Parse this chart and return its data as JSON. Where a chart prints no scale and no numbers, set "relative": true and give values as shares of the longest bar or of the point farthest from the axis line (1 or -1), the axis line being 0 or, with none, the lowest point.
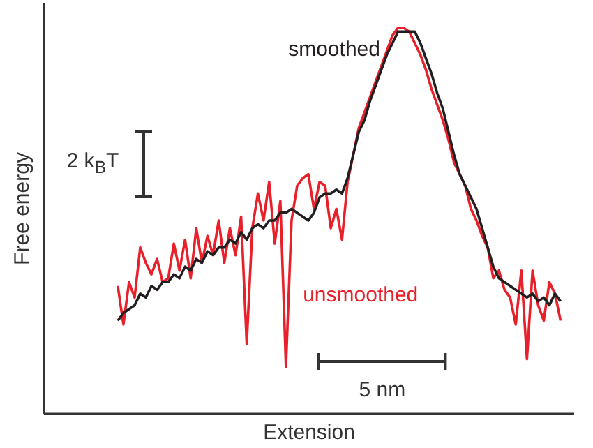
{
  "chart_data": {
    "type": "line",
    "relative": true,
    "xlabel": "Extension",
    "ylabel": "Free energy",
    "categories": [
      null,
      null,
      null,
      null,
      null,
      null,
      null,
      null,
      null,
      null,
      null,
      null,
      null,
      null,
      null,
      null,
      null,
      null,
      null,
      null,
      null,
      null,
      null,
      null,
      null,
      null,
      null,
      null,
      null,
      null,
      null,
      null,
      null,
      null,
      null,
      null,
      null,
      null,
      null,
      null,
      null,
      null,
      null,
      null,
      null,
      null,
      null,
      null,
      null,
      null,
      null,
      null,
      null,
      null,
      null,
      null,
      null,
      null,
      null,
      null,
      null,
      null,
      null,
      null,
      null,
      null,
      null,
      null,
      null,
      null,
      null,
      null,
      null,
      null,
      null,
      null,
      null,
      null,
      null,
      null
    ],
    "series": [
      {
        "name": "unsmoothed",
        "color": "#e8202a",
        "values": [
          0.33,
          0.23,
          0.34,
          0.3,
          0.43,
          0.39,
          0.36,
          0.4,
          0.34,
          0.35,
          0.44,
          0.37,
          0.45,
          0.35,
          0.48,
          0.39,
          0.46,
          0.41,
          0.5,
          0.39,
          0.48,
          0.41,
          0.51,
          0.18,
          0.48,
          0.57,
          0.5,
          0.6,
          0.44,
          0.55,
          0.12,
          0.5,
          0.59,
          0.61,
          0.62,
          0.53,
          0.6,
          0.59,
          0.48,
          0.53,
          0.45,
          0.6,
          0.67,
          0.74,
          0.78,
          0.82,
          0.86,
          0.9,
          0.94,
          0.98,
          1,
          1,
          0.99,
          0.96,
          0.93,
          0.89,
          0.84,
          0.8,
          0.76,
          0.71,
          0.65,
          0.62,
          0.59,
          0.53,
          0.5,
          0.46,
          0.43,
          0.35,
          0.37,
          0.32,
          0.3,
          0.23,
          0.37,
          0.14,
          0.37,
          0.28,
          0.24,
          0.34,
          0.31,
          0.24
        ]
      },
      {
        "name": "smoothed",
        "color": "#231f20",
        "values": [
          0.24,
          0.26,
          0.27,
          0.28,
          0.31,
          0.3,
          0.33,
          0.32,
          0.34,
          0.34,
          0.36,
          0.35,
          0.38,
          0.37,
          0.4,
          0.39,
          0.42,
          0.41,
          0.43,
          0.43,
          0.45,
          0.44,
          0.47,
          0.45,
          0.48,
          0.49,
          0.48,
          0.5,
          0.5,
          0.52,
          0.52,
          0.53,
          0.52,
          0.51,
          0.5,
          0.52,
          0.56,
          0.57,
          0.57,
          0.58,
          0.57,
          0.61,
          0.67,
          0.73,
          0.76,
          0.81,
          0.85,
          0.89,
          0.93,
          0.96,
          0.99,
          0.99,
          0.99,
          0.99,
          0.96,
          0.92,
          0.88,
          0.83,
          0.79,
          0.73,
          0.67,
          0.62,
          0.59,
          0.56,
          0.53,
          0.48,
          0.43,
          0.38,
          0.35,
          0.34,
          0.33,
          0.32,
          0.31,
          0.3,
          0.31,
          0.29,
          0.3,
          0.28,
          0.31,
          0.29
        ]
      }
    ],
    "annotations": [
      "2 k$_{B}$T",
      "5 nm"
    ]
  }
}
